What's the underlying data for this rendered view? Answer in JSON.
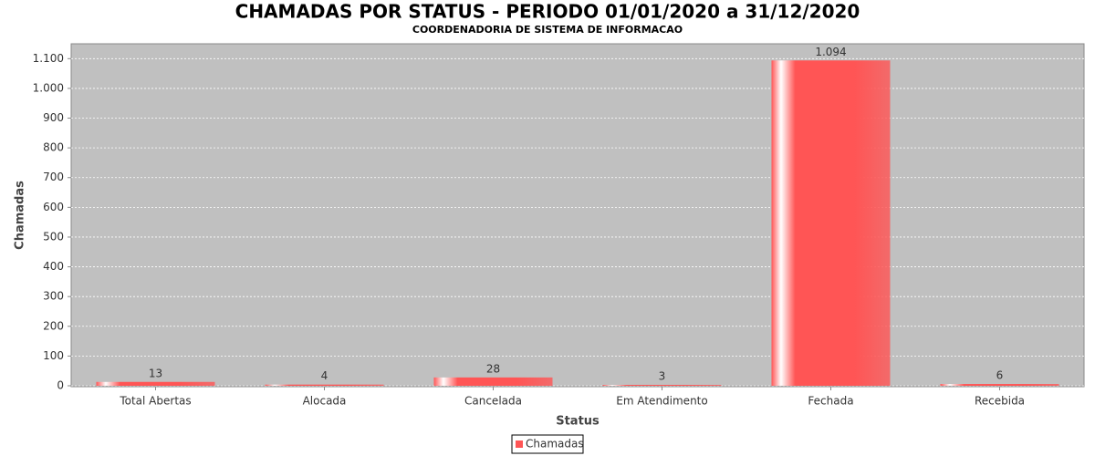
{
  "chart_data": {
    "type": "bar",
    "title": "CHAMADAS POR STATUS - PERIODO 01/01/2020 a 31/12/2020",
    "subtitle": "COORDENADORIA DE SISTEMA DE INFORMACAO",
    "x_label": "Status",
    "y_label": "Chamadas",
    "categories": [
      "Total Abertas",
      "Alocada",
      "Cancelada",
      "Em Atendimento",
      "Fechada",
      "Recebida"
    ],
    "series": [
      {
        "name": "Chamadas",
        "color": "#ff5555",
        "values": [
          13,
          4,
          28,
          3,
          1094,
          6
        ],
        "value_labels": [
          "13",
          "4",
          "28",
          "3",
          "1.094",
          "6"
        ]
      }
    ],
    "ylim": [
      0,
      1150
    ],
    "yticks": [
      0,
      100,
      200,
      300,
      400,
      500,
      600,
      700,
      800,
      900,
      {
        "value": 1000,
        "label": "1.000"
      },
      {
        "value": 1100,
        "label": "1.100"
      }
    ],
    "grid": true,
    "legend": "bottom"
  }
}
